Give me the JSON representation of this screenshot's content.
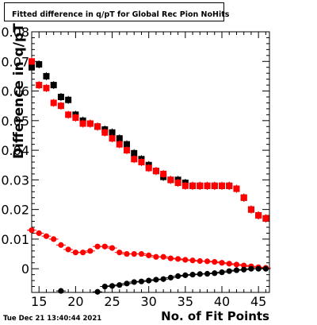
{
  "title": "Fitted difference in q/pT for Global Rec Pion NoHits",
  "timestamp": "Tue Dec 21 13:40:44 2021",
  "chart_data": {
    "type": "scatter",
    "xlabel": "No. of Fit Points",
    "ylabel": "Difference in q/pT",
    "xlim": [
      14,
      46.5
    ],
    "ylim": [
      -0.008,
      0.08
    ],
    "xticks": [
      15,
      20,
      25,
      30,
      35,
      40,
      45
    ],
    "yticks": [
      0,
      0.01,
      0.02,
      0.03,
      0.04,
      0.05,
      0.06,
      0.07,
      0.08
    ],
    "ytick_labels": [
      "0",
      "0.01",
      "0.02",
      "0.03",
      "0.04",
      "0.05",
      "0.06",
      "0.07",
      "0.08"
    ],
    "series": [
      {
        "color": "#000000",
        "marker": "square",
        "x": [
          14,
          15,
          16,
          17,
          18,
          19,
          20,
          21,
          22,
          23,
          24,
          25,
          26,
          27,
          28,
          29,
          30,
          31,
          32,
          33,
          34,
          35,
          36,
          37,
          38,
          39,
          40,
          41,
          42,
          43,
          44,
          45,
          46
        ],
        "y": [
          0.068,
          0.069,
          0.065,
          0.062,
          0.058,
          0.057,
          0.052,
          0.05,
          0.049,
          0.048,
          0.047,
          0.046,
          0.044,
          0.042,
          0.039,
          0.037,
          0.035,
          0.033,
          0.031,
          0.03,
          0.03,
          0.029,
          0.028,
          0.028,
          0.028,
          0.028,
          0.028,
          0.028,
          0.027,
          0.024,
          0.02,
          0.018,
          0.017
        ]
      },
      {
        "color": "#ff0000",
        "marker": "square",
        "x": [
          14,
          15,
          16,
          17,
          18,
          19,
          20,
          21,
          22,
          23,
          24,
          25,
          26,
          27,
          28,
          29,
          30,
          31,
          32,
          33,
          34,
          35,
          36,
          37,
          38,
          39,
          40,
          41,
          42,
          43,
          44,
          45,
          46
        ],
        "y": [
          0.07,
          0.062,
          0.061,
          0.056,
          0.055,
          0.052,
          0.051,
          0.049,
          0.049,
          0.048,
          0.046,
          0.044,
          0.042,
          0.04,
          0.037,
          0.036,
          0.034,
          0.033,
          0.032,
          0.03,
          0.029,
          0.028,
          0.028,
          0.028,
          0.028,
          0.028,
          0.028,
          0.028,
          0.027,
          0.024,
          0.02,
          0.018,
          0.017
        ]
      },
      {
        "color": "#ff0000",
        "marker": "circle",
        "x": [
          14,
          15,
          16,
          17,
          18,
          19,
          20,
          21,
          22,
          23,
          24,
          25,
          26,
          27,
          28,
          29,
          30,
          31,
          32,
          33,
          34,
          35,
          36,
          37,
          38,
          39,
          40,
          41,
          42,
          43,
          44,
          45,
          46
        ],
        "y": [
          0.013,
          0.012,
          0.011,
          0.01,
          0.008,
          0.0065,
          0.0055,
          0.0055,
          0.006,
          0.0075,
          0.0075,
          0.007,
          0.0055,
          0.005,
          0.005,
          0.005,
          0.0045,
          0.004,
          0.004,
          0.0035,
          0.0033,
          0.003,
          0.0028,
          0.0026,
          0.0025,
          0.0023,
          0.002,
          0.0017,
          0.0014,
          0.0011,
          0.0008,
          0.0005,
          0.0003
        ]
      },
      {
        "color": "#000000",
        "marker": "circle",
        "x": [
          18,
          23,
          24,
          25,
          26,
          27,
          28,
          29,
          30,
          31,
          32,
          33,
          34,
          35,
          36,
          37,
          38,
          39,
          40,
          41,
          42,
          43,
          44,
          45,
          46
        ],
        "y": [
          -0.0075,
          -0.0078,
          -0.006,
          -0.0058,
          -0.0055,
          -0.005,
          -0.0045,
          -0.0043,
          -0.004,
          -0.0037,
          -0.0035,
          -0.003,
          -0.0025,
          -0.0022,
          -0.002,
          -0.0018,
          -0.0017,
          -0.0015,
          -0.0012,
          -0.0008,
          -0.0005,
          -0.0003,
          0.0,
          0.0,
          0.0
        ]
      }
    ]
  }
}
